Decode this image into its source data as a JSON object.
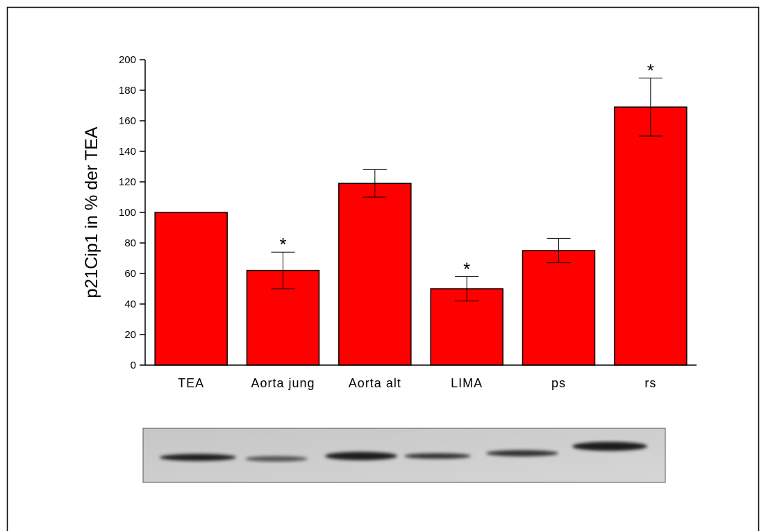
{
  "chart_data": {
    "type": "bar",
    "y_label": "p21Cip1 in % der TEA",
    "categories": [
      "TEA",
      "Aorta jung",
      "Aorta alt",
      "LIMA",
      "ps",
      "rs"
    ],
    "values": [
      100,
      62,
      119,
      50,
      75,
      169
    ],
    "errors": [
      null,
      12,
      9,
      8,
      8,
      19
    ],
    "significance": [
      null,
      "*",
      null,
      "*",
      null,
      "*"
    ],
    "color": "#ff0000",
    "ylim": [
      0,
      200
    ],
    "yticks": [
      0,
      20,
      40,
      60,
      80,
      100,
      120,
      140,
      160,
      180,
      200
    ]
  }
}
